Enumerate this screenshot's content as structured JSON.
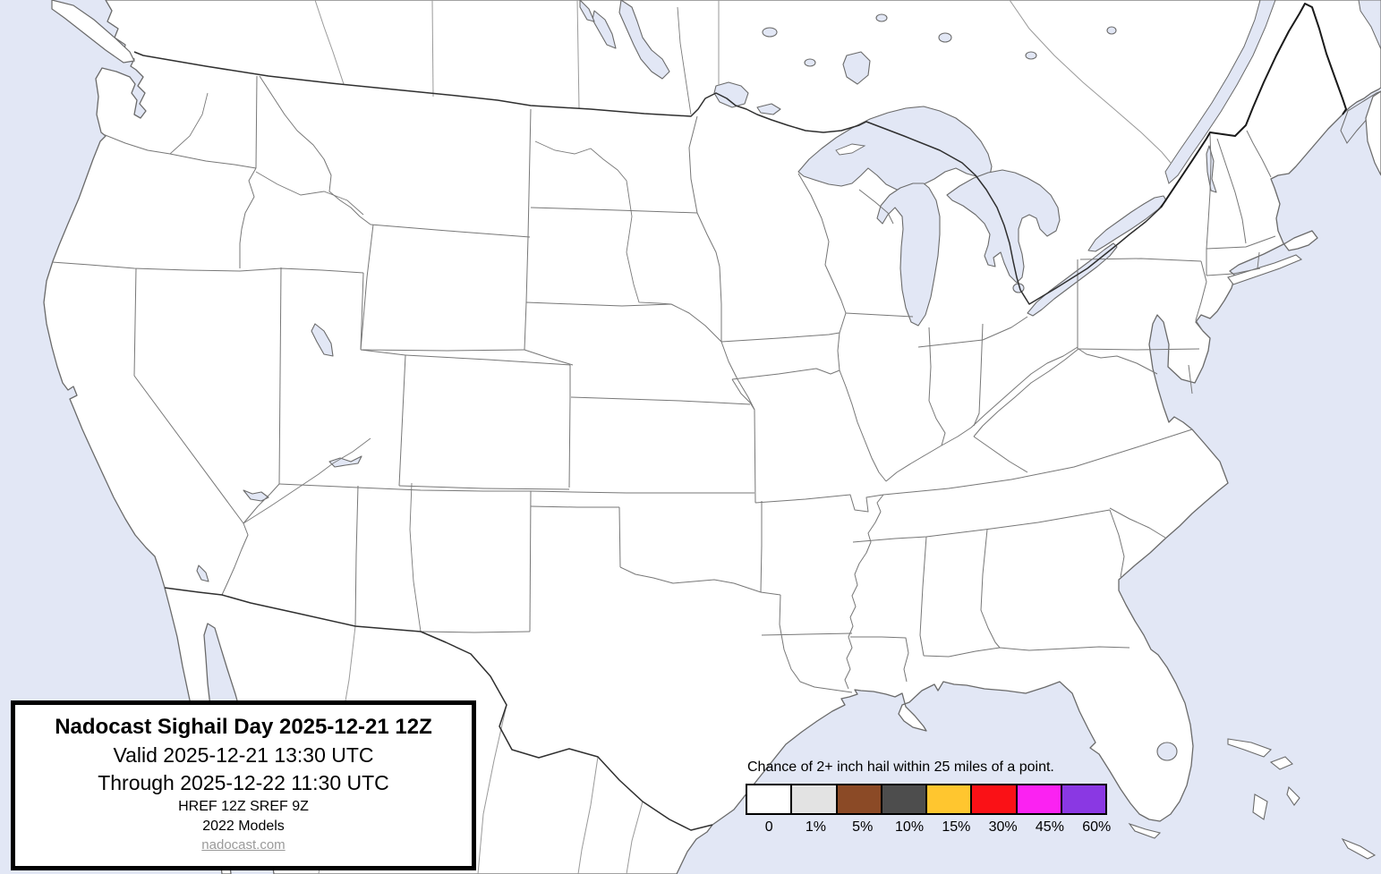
{
  "map": {
    "region_name": "Continental United States forecast map",
    "land_color": "#FFFFFF",
    "water_color": "#E2E7F5",
    "state_border_color": "#777777",
    "national_border_color": "#2F2F2F"
  },
  "title_box": {
    "title": "Nadocast Sighail Day 2025-12-21 12Z",
    "valid_line": "Valid 2025-12-21 13:30 UTC",
    "through_line": "Through 2025-12-22 11:30 UTC",
    "models_line": "HREF 12Z SREF 9Z",
    "models_year_line": "2022 Models",
    "site_link": "nadocast.com"
  },
  "legend": {
    "caption": "Chance of 2+ inch hail within 25 miles of a point.",
    "entries": [
      {
        "label": "0",
        "color": "#FFFFFF"
      },
      {
        "label": "1%",
        "color": "#E3E3E3"
      },
      {
        "label": "5%",
        "color": "#8B4A26"
      },
      {
        "label": "10%",
        "color": "#4D4D4D"
      },
      {
        "label": "15%",
        "color": "#FFC62F"
      },
      {
        "label": "30%",
        "color": "#FA1116"
      },
      {
        "label": "45%",
        "color": "#FB22F2"
      },
      {
        "label": "60%",
        "color": "#8A38E3"
      }
    ]
  }
}
